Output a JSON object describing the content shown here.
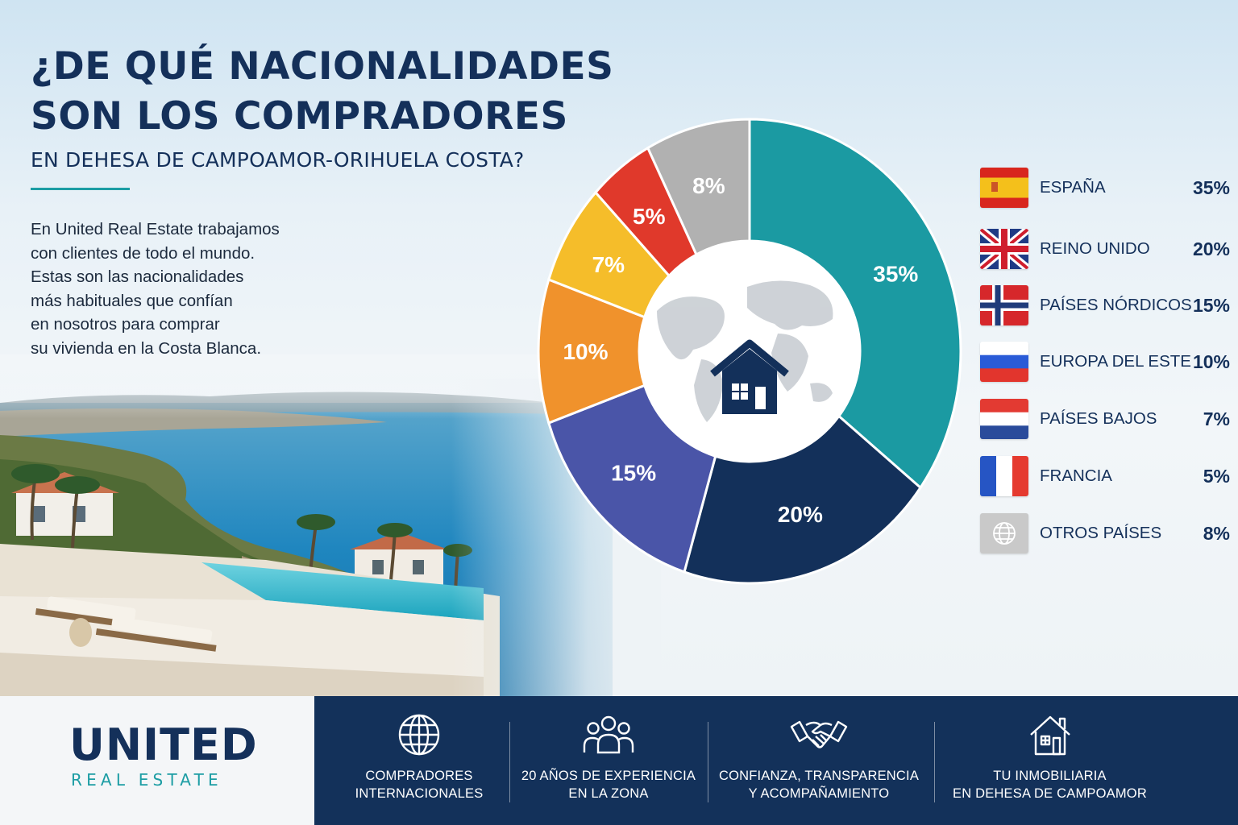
{
  "header": {
    "title_line1": "¿DE QUÉ NACIONALIDADES",
    "title_line2": "SON LOS COMPRADORES",
    "subtitle": "EN DEHESA DE CAMPOAMOR-ORIHUELA COSTA?"
  },
  "intro": {
    "lines": [
      "En United Real Estate trabajamos",
      "con clientes de todo el mundo.",
      "Estas son las nacionalidades",
      "más habituales que confían",
      "en nosotros para comprar",
      "su vivienda en la Costa Blanca."
    ]
  },
  "chart_data": {
    "type": "pie",
    "categories": [
      "ESPAÑA",
      "REINO UNIDO",
      "PAÍSES NÓRDICOS",
      "EUROPA DEL ESTE",
      "PAÍSES BAJOS",
      "FRANCIA",
      "OTROS PAÍSES"
    ],
    "values": [
      35,
      20,
      15,
      10,
      7,
      5,
      8
    ],
    "labels": [
      "35%",
      "20%",
      "15%",
      "10%",
      "7%",
      "5%",
      "8%"
    ],
    "colors": [
      "#1b9aa2",
      "#13305a",
      "#4a55a8",
      "#f0922c",
      "#f5bd2a",
      "#e0392b",
      "#b1b1b1"
    ],
    "donut": true,
    "center_icon": "house-on-world-map-icon",
    "legend_placement": "right"
  },
  "legend": {
    "items": [
      {
        "flag": "spain-flag-icon",
        "label": "ESPAÑA",
        "pct": "35%"
      },
      {
        "flag": "uk-flag-icon",
        "label": "REINO UNIDO",
        "pct": "20%"
      },
      {
        "flag": "norway-flag-icon",
        "label": "PAÍSES NÓRDICOS",
        "pct": "15%"
      },
      {
        "flag": "russia-flag-icon",
        "label": "EUROPA DEL ESTE",
        "pct": "10%"
      },
      {
        "flag": "netherlands-flag-icon",
        "label": "PAÍSES BAJOS",
        "pct": "7%"
      },
      {
        "flag": "france-flag-icon",
        "label": "FRANCIA",
        "pct": "5%"
      },
      {
        "flag": "globe-icon",
        "label": "OTROS PAÍSES",
        "pct": "8%"
      }
    ]
  },
  "footer": {
    "logo_main": "UNITED",
    "logo_sub": "REAL ESTATE",
    "features": [
      {
        "icon": "globe-icon",
        "line1": "COMPRADORES",
        "line2": "INTERNACIONALES"
      },
      {
        "icon": "people-group-icon",
        "line1": "20 AÑOS DE EXPERIENCIA",
        "line2": "EN LA ZONA"
      },
      {
        "icon": "handshake-icon",
        "line1": "CONFIANZA, TRANSPARENCIA",
        "line2": "Y ACOMPAÑAMIENTO"
      },
      {
        "icon": "house-icon",
        "line1": "TU INMOBILIARIA",
        "line2": "EN DEHESA DE CAMPOAMOR"
      }
    ]
  },
  "colors": {
    "navy": "#13305a",
    "teal": "#1c9da4"
  }
}
